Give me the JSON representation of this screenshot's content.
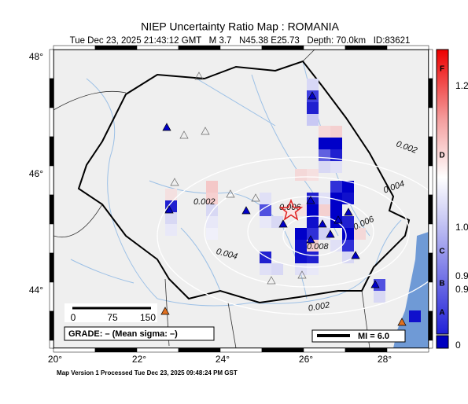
{
  "header": {
    "title": "NIEP Uncertainty Ratio Map : ROMANIA",
    "subtitle": "Tue Dec 23, 2025 21:43:12 GMT   M 3.7   N45.38 E25.73   Depth: 70.0km   ID:83621"
  },
  "map": {
    "lat_labels": [
      "48°",
      "46°",
      "44°"
    ],
    "lon_labels": [
      "20°",
      "22°",
      "24°",
      "26°",
      "28°"
    ],
    "contour_labels": [
      "0.002",
      "0.004",
      "0.002",
      "0.006",
      "0.006",
      "0.008",
      "0.004",
      "0.002"
    ],
    "scale_labels": [
      "0",
      "75",
      "150"
    ],
    "grade": "GRADE: – (Mean sigma: –)",
    "magnitude_legend": "MI = 6.0"
  },
  "colorbar": {
    "grades": [
      "F",
      "D",
      "C",
      "B",
      "A"
    ],
    "ticks": [
      "1.2",
      "1.0",
      "0.9",
      "0.9",
      "0"
    ]
  },
  "footer": "Map Version 1 Processed Tue Dec 23, 2025 09:48:24 PM GST"
}
